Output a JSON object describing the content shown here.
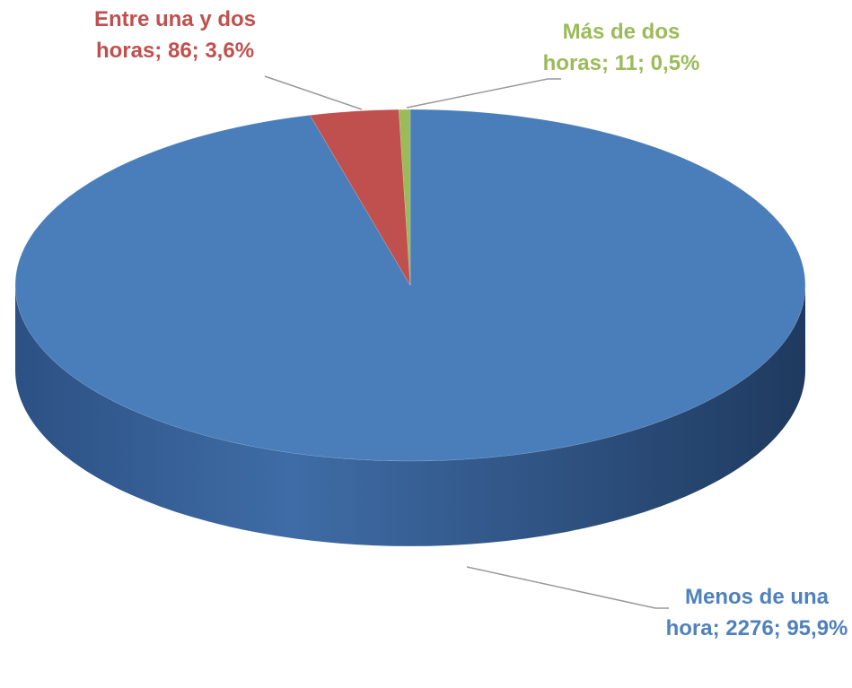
{
  "chart_data": {
    "type": "pie",
    "categories": [
      "Menos de una hora",
      "Entre una y dos horas",
      "Más de dos horas"
    ],
    "values": [
      2276,
      86,
      11
    ],
    "value_labels": [
      "Menos de una hora; 2276; 95,9%",
      "Entre una y dos horas; 86; 3,6%",
      "Más de dos horas; 11; 0,5%"
    ],
    "colors": [
      "#4a7ebb",
      "#c0504d",
      "#9bbb59"
    ]
  }
}
